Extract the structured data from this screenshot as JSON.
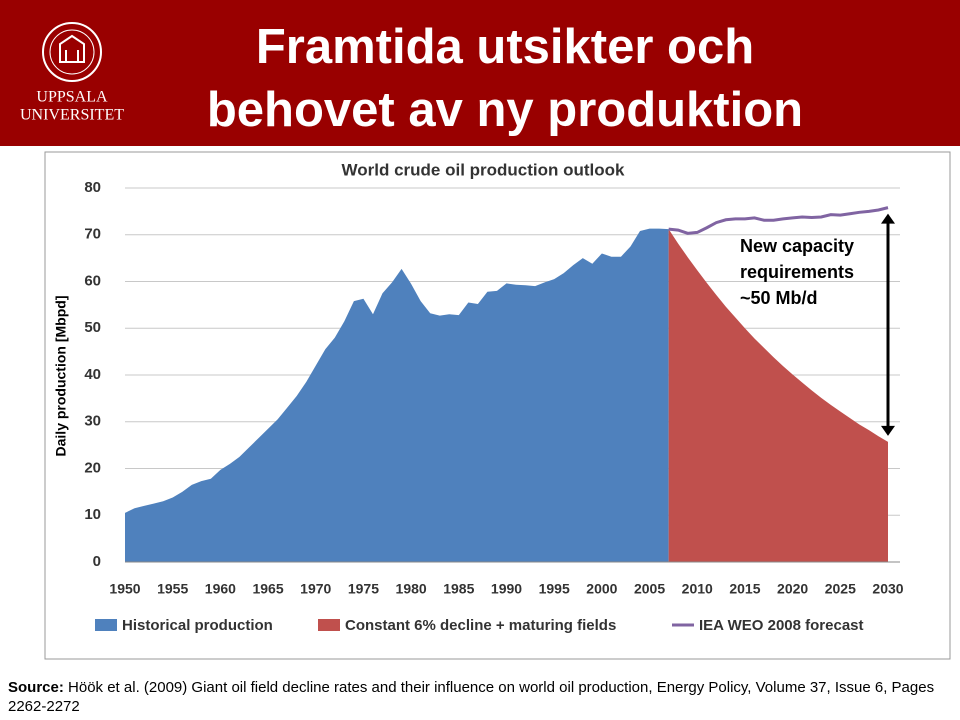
{
  "header": {
    "title": "Framtida utsikter och behovet av ny produktion",
    "logo_lines": [
      "UPPSALA",
      "UNIVERSITET"
    ]
  },
  "chart_data": {
    "type": "area",
    "title": "World crude oil production outlook",
    "y_label": "Daily production [Mbpd]",
    "xlim": [
      1950,
      2030
    ],
    "xticks": [
      1950,
      1955,
      1960,
      1965,
      1970,
      1975,
      1980,
      1985,
      1990,
      1995,
      2000,
      2005,
      2010,
      2015,
      2020,
      2025,
      2030
    ],
    "ylim": [
      0,
      80
    ],
    "yticks": [
      0,
      10,
      20,
      30,
      40,
      50,
      60,
      70,
      80
    ],
    "grid": true,
    "annotation": [
      "New capacity",
      "requirements",
      "~50 Mb/d"
    ],
    "series": [
      {
        "name": "Historical production",
        "color": "#4f81bd",
        "x": [
          1950,
          1951,
          1952,
          1953,
          1954,
          1955,
          1956,
          1957,
          1958,
          1959,
          1960,
          1961,
          1962,
          1963,
          1964,
          1965,
          1966,
          1967,
          1968,
          1969,
          1970,
          1971,
          1972,
          1973,
          1974,
          1975,
          1976,
          1977,
          1978,
          1979,
          1980,
          1981,
          1982,
          1983,
          1984,
          1985,
          1986,
          1987,
          1988,
          1989,
          1990,
          1991,
          1992,
          1993,
          1994,
          1995,
          1996,
          1997,
          1998,
          1999,
          2000,
          2001,
          2002,
          2003,
          2004,
          2005,
          2006,
          2007
        ],
        "values": [
          10.5,
          11.5,
          12,
          12.5,
          13,
          13.8,
          15,
          16.5,
          17.3,
          17.8,
          19.7,
          21,
          22.5,
          24.5,
          26.5,
          28.5,
          30.5,
          33,
          35.5,
          38.5,
          42,
          45.5,
          48,
          51.5,
          55.8,
          56.3,
          53,
          57.5,
          59.8,
          62.7,
          59.5,
          55.8,
          53.2,
          52.7,
          53,
          52.8,
          55.5,
          55.2,
          57.8,
          58,
          59.6,
          59.3,
          59.2,
          59,
          59.8,
          60.5,
          61.8,
          63.5,
          65,
          63.8,
          66,
          65.3,
          65.3,
          67.5,
          70.8,
          71.3,
          71.3,
          71.2
        ]
      },
      {
        "name": "Constant 6% decline + maturing fields",
        "color": "#c0504d",
        "x": [
          2007,
          2008,
          2009,
          2010,
          2011,
          2012,
          2013,
          2014,
          2015,
          2016,
          2017,
          2018,
          2019,
          2020,
          2021,
          2022,
          2023,
          2024,
          2025,
          2026,
          2027,
          2028,
          2029,
          2030
        ],
        "values": [
          71.2,
          68.1,
          65.2,
          62.4,
          59.7,
          57.1,
          54.6,
          52.3,
          50,
          47.8,
          45.8,
          43.8,
          41.9,
          40.1,
          38.4,
          36.7,
          35.1,
          33.6,
          32.2,
          30.8,
          29.4,
          28.2,
          26.9,
          25.7
        ]
      },
      {
        "name": "IEA WEO 2008 forecast",
        "color": "#8064a2",
        "type": "line",
        "x": [
          2007,
          2008,
          2009,
          2010,
          2011,
          2012,
          2013,
          2014,
          2015,
          2016,
          2017,
          2018,
          2019,
          2020,
          2021,
          2022,
          2023,
          2024,
          2025,
          2026,
          2027,
          2028,
          2029,
          2030
        ],
        "values": [
          71.2,
          71,
          70.3,
          70.5,
          71.5,
          72.6,
          73.2,
          73.4,
          73.4,
          73.6,
          73.1,
          73.1,
          73.4,
          73.6,
          73.8,
          73.7,
          73.8,
          74.3,
          74.2,
          74.5,
          74.8,
          75,
          75.3,
          75.8
        ]
      }
    ]
  },
  "source": {
    "label": "Source:",
    "text": "Höök  et al. (2009) Giant oil field decline rates and their influence on world oil production, Energy Policy, Volume 37, Issue 6, Pages 2262-2272"
  }
}
